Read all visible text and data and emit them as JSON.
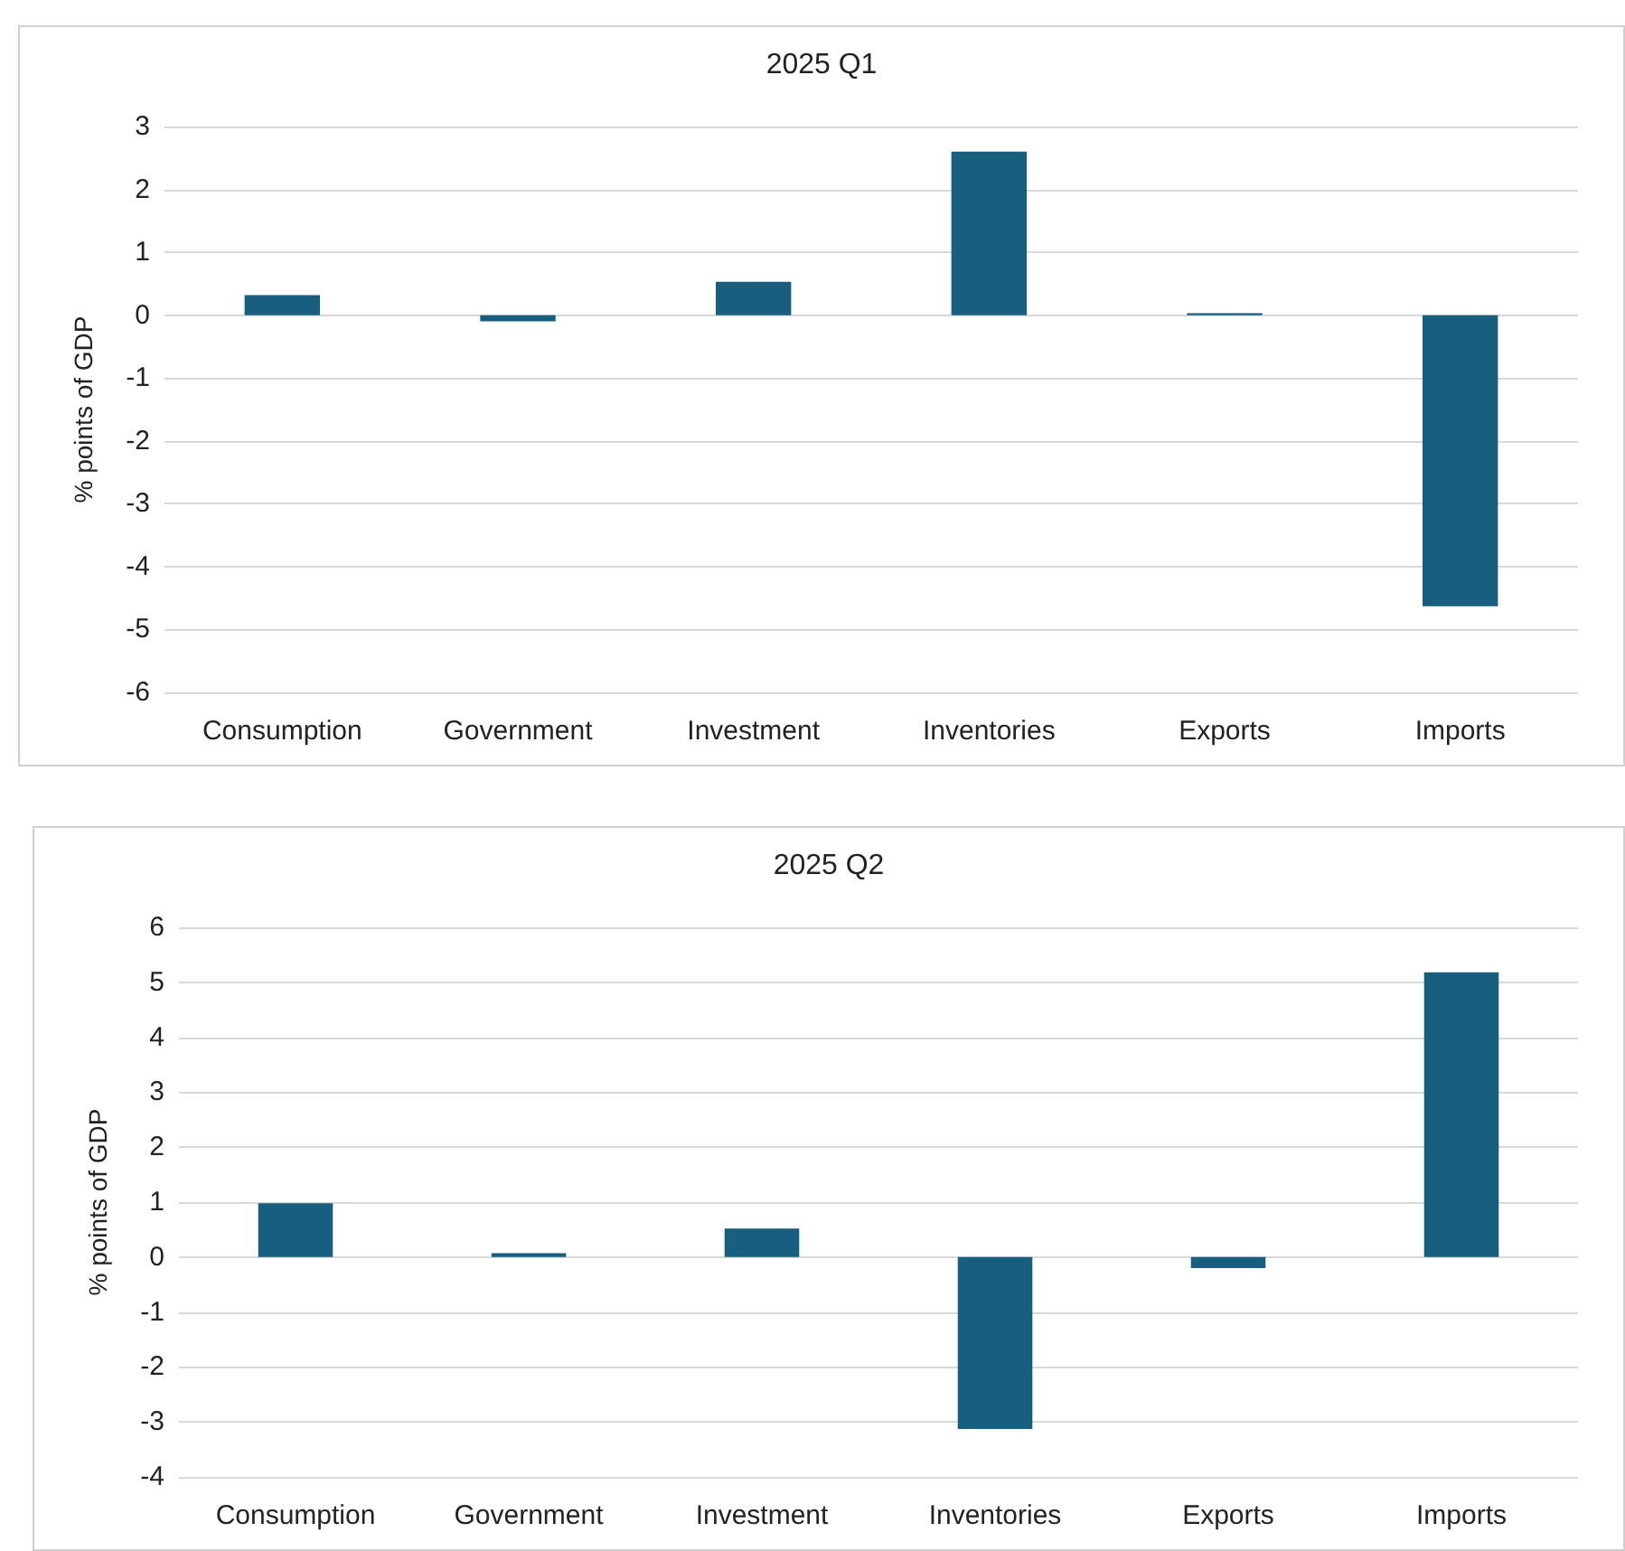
{
  "chart_data": [
    {
      "type": "bar",
      "title": "2025 Q1",
      "ylabel": "% points of GDP",
      "categories": [
        "Consumption",
        "Government",
        "Investment",
        "Inventories",
        "Exports",
        "Imports"
      ],
      "values": [
        0.32,
        -0.1,
        0.53,
        2.6,
        0.03,
        -4.63
      ],
      "color": "#175e7f",
      "ylim": [
        -6,
        3
      ],
      "yticks": [
        -6,
        -5,
        -4,
        -3,
        -2,
        -1,
        0,
        1,
        2,
        3
      ],
      "grid": "y"
    },
    {
      "type": "bar",
      "title": "2025 Q2",
      "ylabel": "% points of GDP",
      "categories": [
        "Consumption",
        "Government",
        "Investment",
        "Inventories",
        "Exports",
        "Imports"
      ],
      "values": [
        0.98,
        0.07,
        0.52,
        -3.13,
        -0.2,
        5.18
      ],
      "color": "#175e7f",
      "ylim": [
        -4,
        6
      ],
      "yticks": [
        -4,
        -3,
        -2,
        -1,
        0,
        1,
        2,
        3,
        4,
        5,
        6
      ],
      "grid": "y"
    }
  ]
}
